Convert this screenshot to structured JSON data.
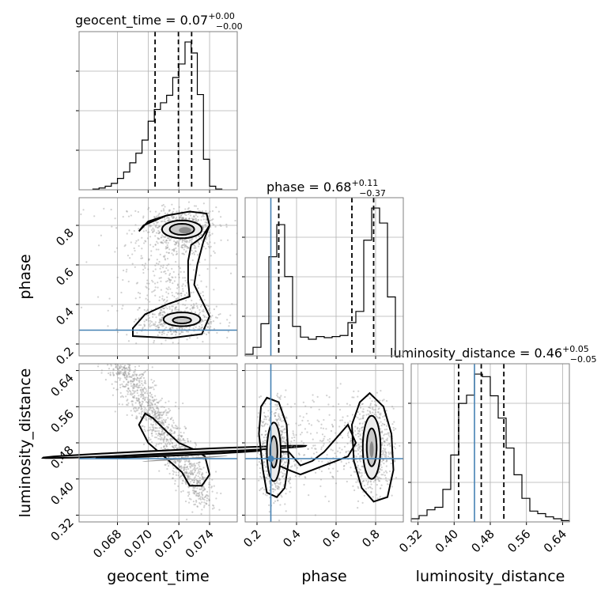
{
  "chart_data": {
    "type": "corner",
    "parameters": [
      "geocent_time",
      "phase",
      "luminosity_distance"
    ],
    "titles": [
      {
        "param": "geocent_time",
        "text": "geocent_time = 0.07",
        "plus": "+0.00",
        "minus": "−0.00"
      },
      {
        "param": "phase",
        "text": "phase = 0.68",
        "plus": "+0.11",
        "minus": "−0.37"
      },
      {
        "param": "luminosity_distance",
        "text": "luminosity_distance = 0.46",
        "plus": "+0.05",
        "minus": "−0.05"
      }
    ],
    "axis_labels": {
      "x": [
        "geocent_time",
        "phase",
        "luminosity_distance"
      ],
      "y": [
        "phase",
        "luminosity_distance"
      ]
    },
    "ranges": {
      "geocent_time": [
        0.0655,
        0.0758
      ],
      "phase": [
        0.14,
        0.94
      ],
      "luminosity_distance": [
        0.305,
        0.655
      ]
    },
    "ticks": {
      "geocent_time": [
        "0.068",
        "0.070",
        "0.072",
        "0.074"
      ],
      "phase": [
        "0.2",
        "0.4",
        "0.6",
        "0.8"
      ],
      "luminosity_distance": [
        "0.32",
        "0.40",
        "0.48",
        "0.56",
        "0.64"
      ]
    },
    "tick_values": {
      "geocent_time": [
        0.068,
        0.07,
        0.072,
        0.074
      ],
      "phase": [
        0.2,
        0.4,
        0.6,
        0.8
      ],
      "luminosity_distance": [
        0.32,
        0.4,
        0.48,
        0.56,
        0.64
      ]
    },
    "truths": {
      "geocent_time": null,
      "phase": 0.27,
      "luminosity_distance": 0.445
    },
    "quantiles": {
      "geocent_time": [
        0.07045,
        0.07197,
        0.07283
      ],
      "phase": [
        0.31,
        0.68,
        0.79
      ],
      "luminosity_distance": [
        0.41,
        0.46,
        0.51
      ]
    },
    "histograms": {
      "geocent_time": {
        "edges": [
          0.0664,
          0.0668,
          0.0672,
          0.0676,
          0.068,
          0.0684,
          0.0688,
          0.0692,
          0.0696,
          0.07,
          0.0704,
          0.0708,
          0.0712,
          0.0716,
          0.072,
          0.0724,
          0.0728,
          0.0732,
          0.0736,
          0.074,
          0.0744,
          0.0748
        ],
        "counts": [
          0.2,
          0.5,
          1.0,
          1.8,
          3.2,
          5.0,
          7.6,
          10.3,
          14.0,
          19.3,
          22.6,
          24.5,
          26.6,
          31.6,
          35.4,
          41.6,
          38.5,
          26.8,
          8.6,
          1.0,
          0.2
        ]
      },
      "phase": {
        "edges": [
          0.14,
          0.18,
          0.22,
          0.26,
          0.3,
          0.34,
          0.38,
          0.42,
          0.46,
          0.5,
          0.54,
          0.58,
          0.62,
          0.66,
          0.7,
          0.74,
          0.78,
          0.82,
          0.86,
          0.9
        ],
        "counts": [
          0.3,
          1.6,
          6.0,
          18.5,
          24.5,
          14.8,
          5.5,
          3.5,
          3.1,
          3.6,
          3.4,
          3.6,
          3.8,
          6.2,
          8.3,
          21.6,
          27.6,
          24.8,
          11.0
        ]
      },
      "luminosity_distance": {
        "edges": [
          0.305,
          0.3225,
          0.34,
          0.3575,
          0.375,
          0.3925,
          0.41,
          0.4275,
          0.445,
          0.4625,
          0.48,
          0.4975,
          0.515,
          0.5325,
          0.55,
          0.5675,
          0.585,
          0.6025,
          0.62,
          0.6375,
          0.655
        ],
        "counts": [
          0.5,
          1.0,
          1.9,
          2.3,
          5.1,
          10.5,
          18.6,
          19.9,
          23.2,
          22.8,
          19.8,
          16.3,
          11.6,
          7.4,
          3.7,
          1.7,
          1.3,
          0.8,
          0.5,
          0.2
        ]
      }
    },
    "density_modes": [
      {
        "pair": [
          "geocent_time",
          "phase"
        ],
        "centers": [
          [
            0.0722,
            0.78
          ],
          [
            0.0722,
            0.32
          ]
        ]
      },
      {
        "pair": [
          "geocent_time",
          "luminosity_distance"
        ],
        "centers": [
          [
            0.0722,
            0.445
          ]
        ]
      },
      {
        "pair": [
          "phase",
          "luminosity_distance"
        ],
        "centers": [
          [
            0.28,
            0.45
          ],
          [
            0.78,
            0.46
          ]
        ]
      }
    ],
    "grid": true,
    "colors": {
      "truth": "#4682b4",
      "hist": "#000000",
      "samples": "#9a9a9a"
    }
  }
}
